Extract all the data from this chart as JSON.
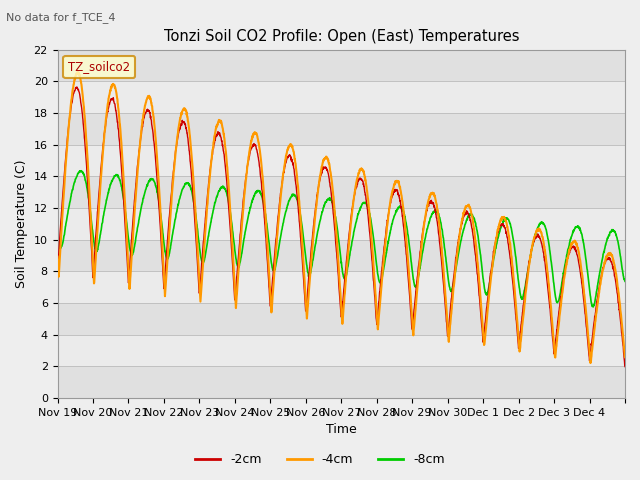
{
  "title": "Tonzi Soil CO2 Profile: Open (East) Temperatures",
  "no_data_text": "No data for f_TCE_4",
  "xlabel": "Time",
  "ylabel": "Soil Temperature (C)",
  "legend_label": "TZ_soilco2",
  "ylim": [
    0,
    22
  ],
  "yticks": [
    0,
    2,
    4,
    6,
    8,
    10,
    12,
    14,
    16,
    18,
    20,
    22
  ],
  "background_color": "#eeeeee",
  "line_colors": {
    "-2cm": "#cc0000",
    "-4cm": "#ff9900",
    "-8cm": "#00cc00"
  },
  "line_widths": {
    "-2cm": 1.0,
    "-4cm": 1.5,
    "-8cm": 1.2
  },
  "tick_labels": [
    "Nov 19",
    "Nov 20",
    "Nov 21",
    "Nov 22",
    "Nov 23",
    "Nov 24",
    "Nov 25",
    "Nov 26",
    "Nov 27",
    "Nov 28",
    "Nov 29",
    "Nov 30",
    "Dec 1",
    "Dec 2",
    "Dec 3",
    "Dec 4"
  ]
}
